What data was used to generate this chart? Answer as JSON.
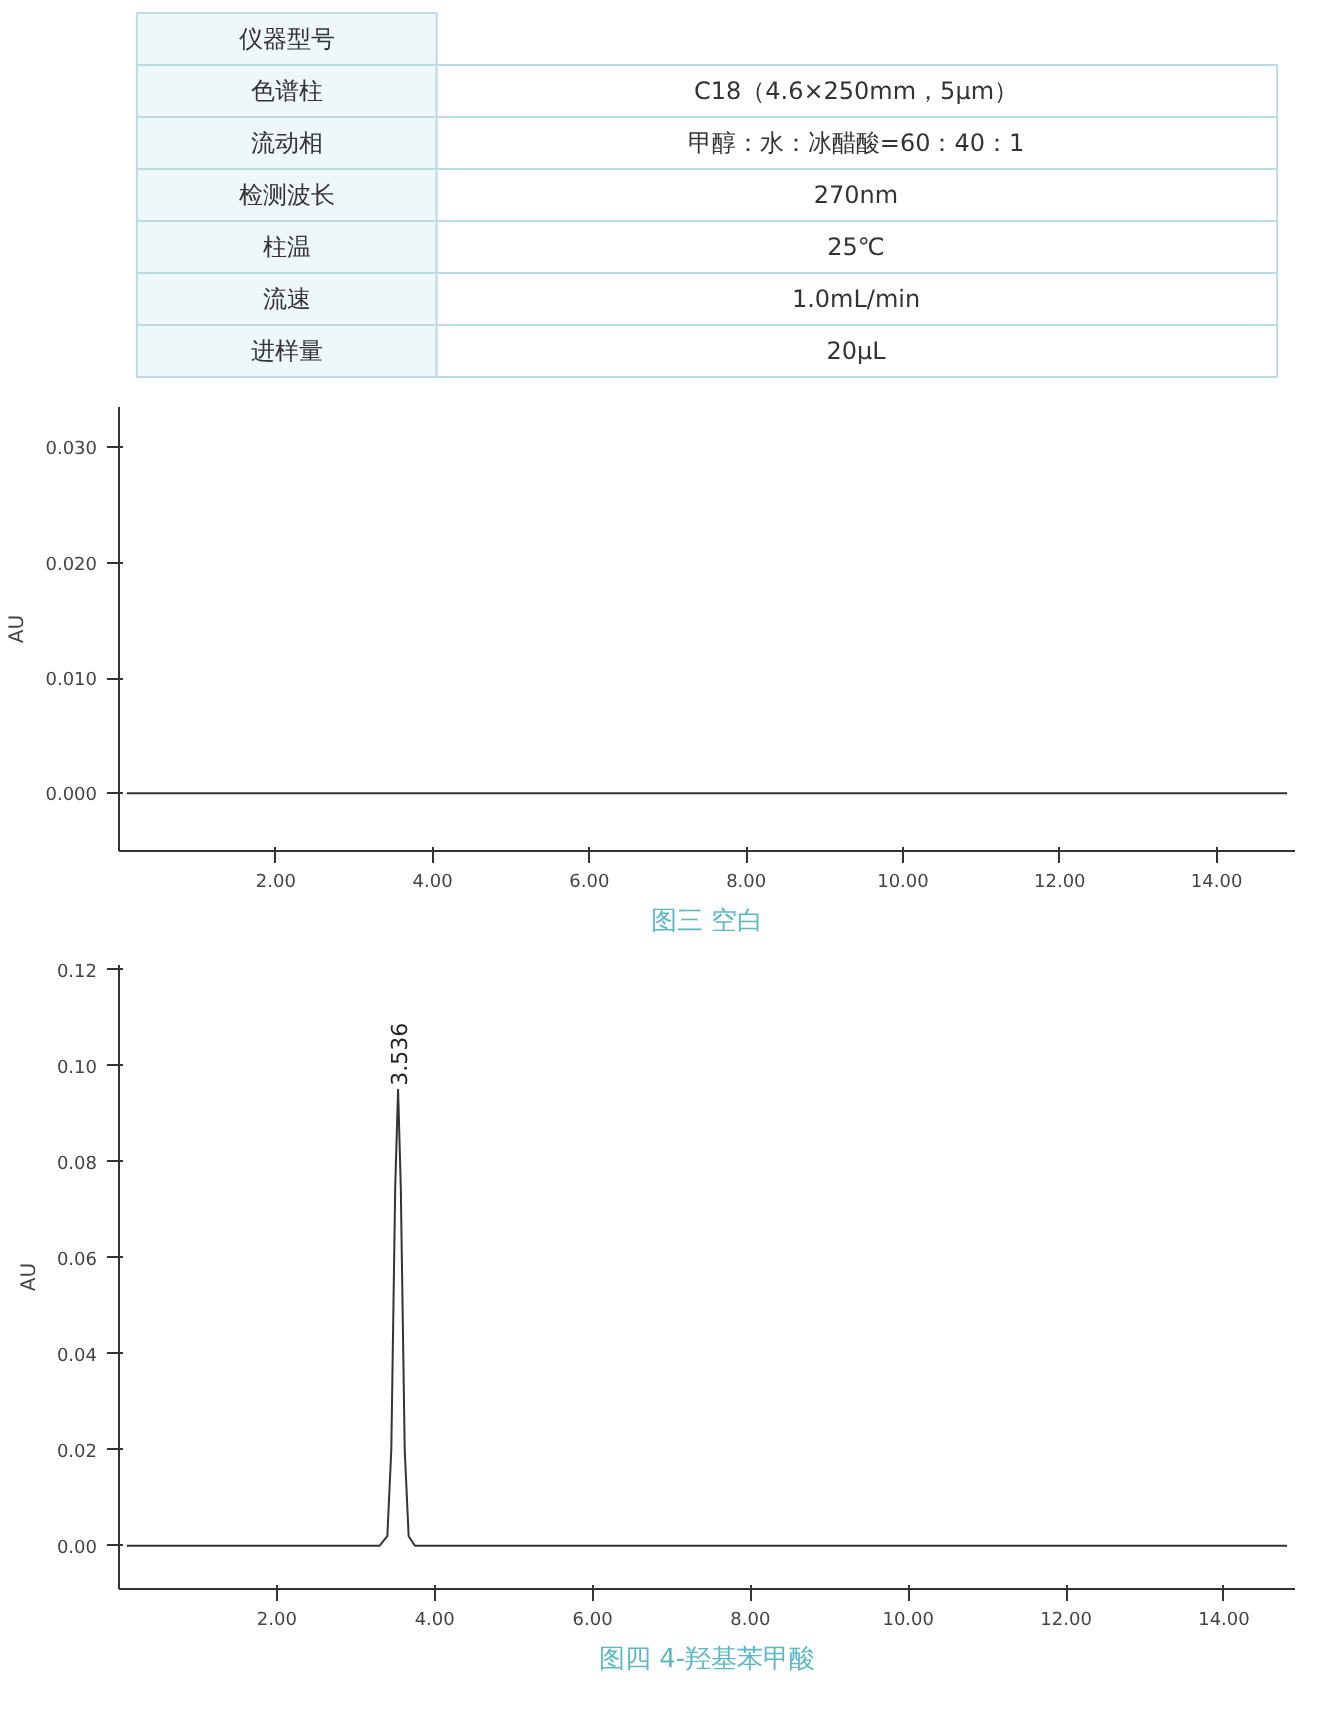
{
  "chart_data": [
    {
      "type": "other",
      "categories": [
        "仪器型号",
        "色谱柱",
        "流动相",
        "检测波长",
        "柱温",
        "流速",
        "进样量"
      ],
      "value_labels": [
        null,
        "C18（4.6×250mm，5μm）",
        "甲醇：水：冰醋酸=60：40：1",
        "270nm",
        "25℃",
        "1.0mL/min",
        "20μL"
      ]
    },
    {
      "type": "line",
      "ylabel": "AU",
      "annotations": [
        "图三 空白"
      ],
      "series": [
        {
          "color": "#333333",
          "x": [
            0.1,
            14.9
          ],
          "values": [
            0,
            0
          ]
        }
      ],
      "xlim": [
        0,
        15
      ],
      "ylim": [
        -0.005,
        0.0335
      ],
      "xticks": [
        {
          "value": 2,
          "label": "2.00"
        },
        {
          "value": 4,
          "label": "4.00"
        },
        {
          "value": 6,
          "label": "6.00"
        },
        {
          "value": 8,
          "label": "8.00"
        },
        {
          "value": 10,
          "label": "10.00"
        },
        {
          "value": 12,
          "label": "12.00"
        },
        {
          "value": 14,
          "label": "14.00"
        }
      ],
      "yticks": [
        {
          "value": 0,
          "label": "0.000"
        },
        {
          "value": 0.01,
          "label": "0.010"
        },
        {
          "value": 0.02,
          "label": "0.020"
        },
        {
          "value": 0.03,
          "label": "0.030"
        }
      ],
      "grid": false
    },
    {
      "type": "line",
      "ylabel": "AU",
      "annotations": [
        {
          "text": "3.536",
          "x": 3.536,
          "y": 0.095
        },
        "图四 4-羟基苯甲酸"
      ],
      "series": [
        {
          "color": "#333333",
          "x": [
            0.1,
            3.3,
            3.4,
            3.45,
            3.5,
            3.536,
            3.57,
            3.62,
            3.67,
            3.75,
            14.8
          ],
          "values": [
            0,
            0,
            0.002,
            0.02,
            0.075,
            0.095,
            0.075,
            0.02,
            0.002,
            0,
            0
          ]
        }
      ],
      "xlim": [
        0,
        14.9
      ],
      "ylim": [
        -0.009,
        0.121
      ],
      "xticks": [
        {
          "value": 2,
          "label": "2.00"
        },
        {
          "value": 4,
          "label": "4.00"
        },
        {
          "value": 6,
          "label": "6.00"
        },
        {
          "value": 8,
          "label": "8.00"
        },
        {
          "value": 10,
          "label": "10.00"
        },
        {
          "value": 12,
          "label": "12.00"
        },
        {
          "value": 14,
          "label": "14.00"
        }
      ],
      "yticks": [
        {
          "value": 0,
          "label": "0.00"
        },
        {
          "value": 0.02,
          "label": "0.02"
        },
        {
          "value": 0.04,
          "label": "0.04"
        },
        {
          "value": 0.06,
          "label": "0.06"
        },
        {
          "value": 0.08,
          "label": "0.08"
        },
        {
          "value": 0.1,
          "label": "0.10"
        },
        {
          "value": 0.12,
          "label": "0.12"
        }
      ],
      "grid": false
    }
  ]
}
